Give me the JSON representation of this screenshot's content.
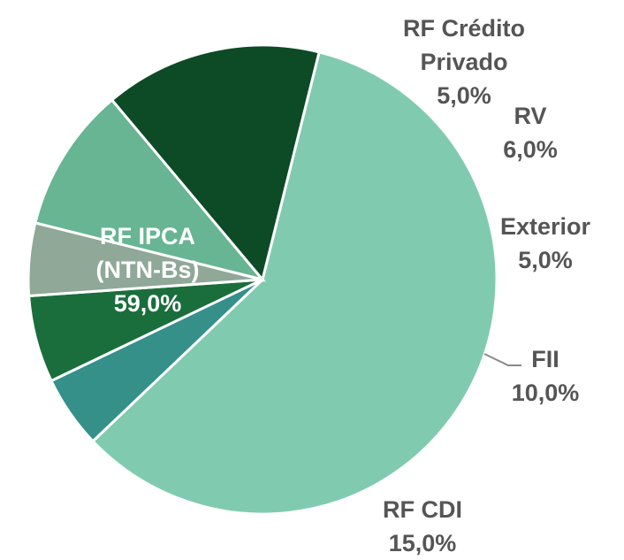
{
  "chart_data": {
    "type": "pie",
    "categories": [
      "RF IPCA (NTN-Bs)",
      "RF Crédito Privado",
      "RV",
      "Exterior",
      "FII",
      "RF CDI"
    ],
    "values": [
      59.0,
      5.0,
      6.0,
      5.0,
      10.0,
      15.0
    ],
    "value_labels": [
      "59,0%",
      "5,0%",
      "6,0%",
      "5,0%",
      "10,0%",
      "15,0%"
    ],
    "colors": [
      "#80cbb0",
      "#35908a",
      "#1a6e3c",
      "#8fa898",
      "#67b592",
      "#0d4a26"
    ]
  }
}
